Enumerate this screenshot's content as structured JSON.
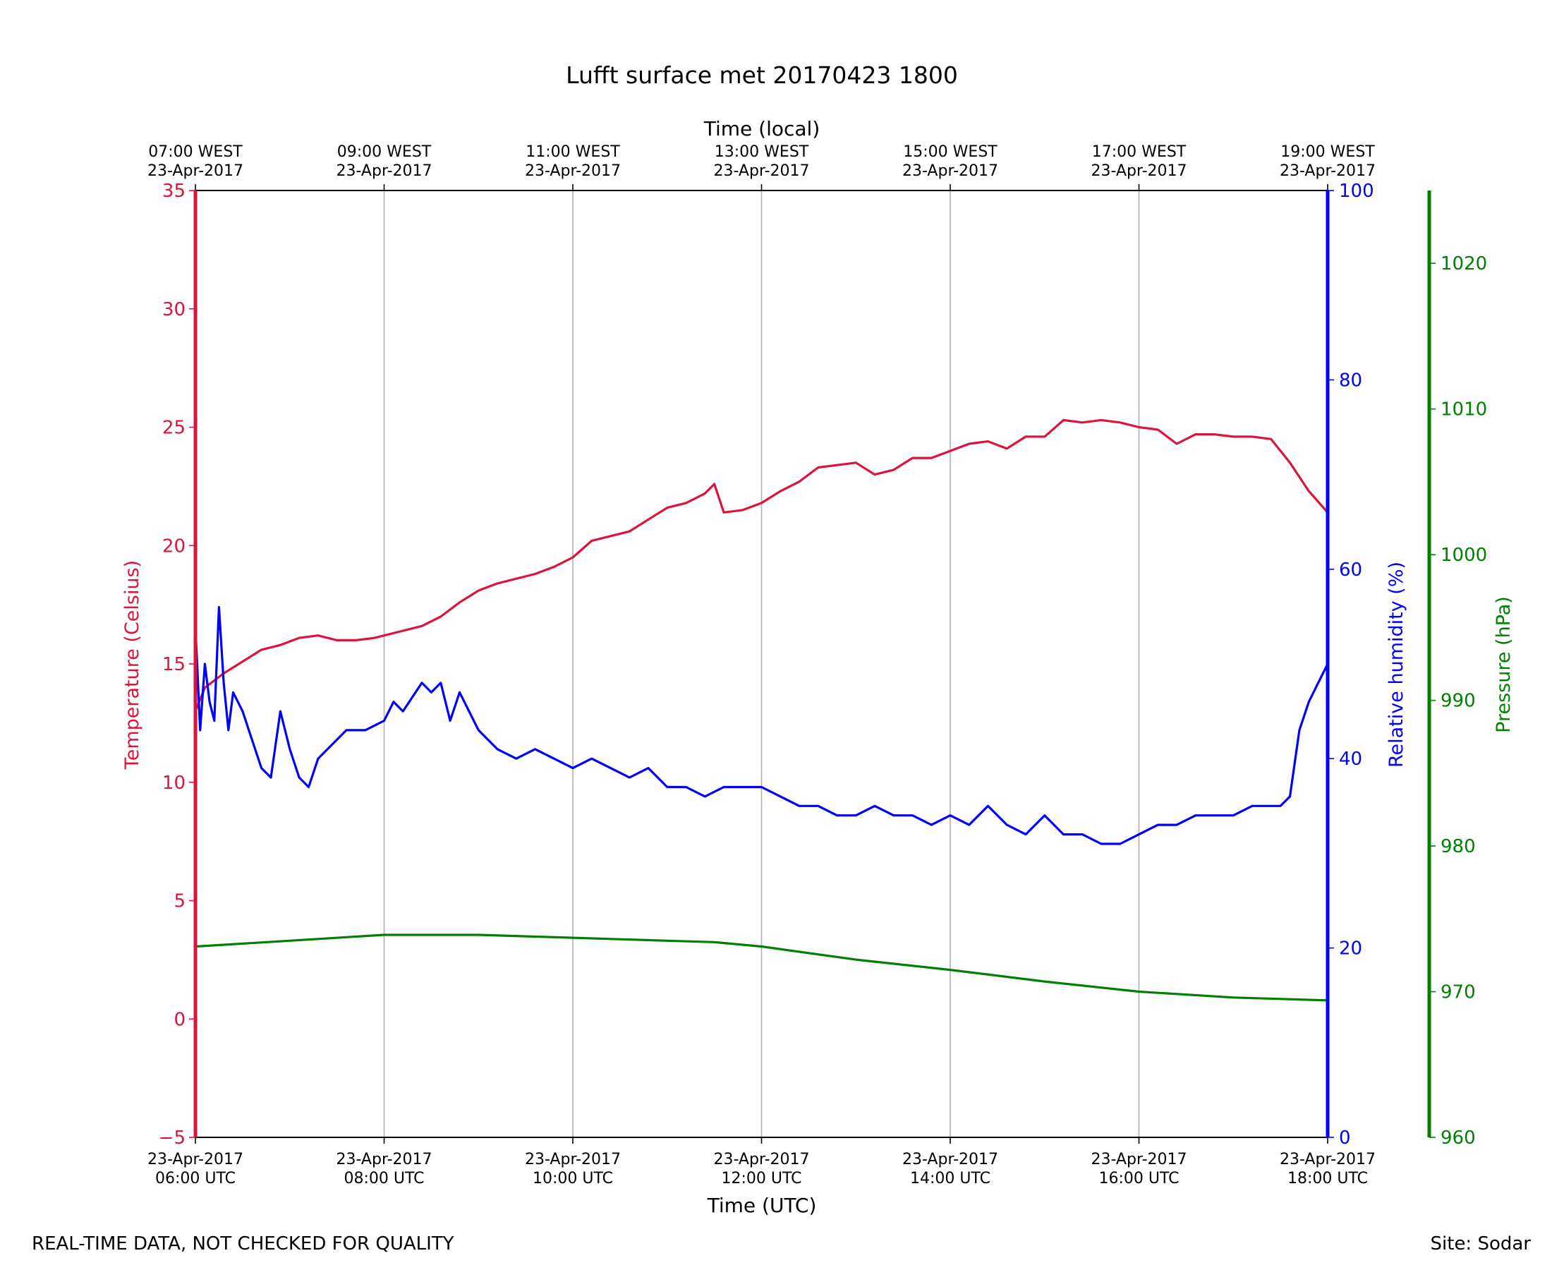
{
  "chart_data": {
    "type": "line",
    "title": "Lufft surface met 20170423 1800",
    "x_top_label": "Time (local)",
    "x_bottom_label": "Time (UTC)",
    "x_hours_utc": [
      6,
      8,
      10,
      12,
      14,
      16,
      18
    ],
    "x_range_hours_utc": [
      6,
      18
    ],
    "ticks_utc": [
      {
        "date": "23-Apr-2017",
        "time": "06:00 UTC"
      },
      {
        "date": "23-Apr-2017",
        "time": "08:00 UTC"
      },
      {
        "date": "23-Apr-2017",
        "time": "10:00 UTC"
      },
      {
        "date": "23-Apr-2017",
        "time": "12:00 UTC"
      },
      {
        "date": "23-Apr-2017",
        "time": "14:00 UTC"
      },
      {
        "date": "23-Apr-2017",
        "time": "16:00 UTC"
      },
      {
        "date": "23-Apr-2017",
        "time": "18:00 UTC"
      }
    ],
    "ticks_local": [
      {
        "time": "07:00 WEST",
        "date": "23-Apr-2017"
      },
      {
        "time": "09:00 WEST",
        "date": "23-Apr-2017"
      },
      {
        "time": "11:00 WEST",
        "date": "23-Apr-2017"
      },
      {
        "time": "13:00 WEST",
        "date": "23-Apr-2017"
      },
      {
        "time": "15:00 WEST",
        "date": "23-Apr-2017"
      },
      {
        "time": "17:00 WEST",
        "date": "23-Apr-2017"
      },
      {
        "time": "19:00 WEST",
        "date": "23-Apr-2017"
      }
    ],
    "grid": "vertical",
    "axes": {
      "temperature": {
        "label": "Temperature (Celsius)",
        "ylim": [
          -5,
          35
        ],
        "ticks": [
          -5,
          0,
          5,
          10,
          15,
          20,
          25,
          30,
          35
        ],
        "tick_labels": [
          "−5",
          "0",
          "5",
          "10",
          "15",
          "20",
          "25",
          "30",
          "35"
        ],
        "color": "#dc143c"
      },
      "humidity": {
        "label": "Relative humidity (%)",
        "ylim": [
          0,
          100
        ],
        "ticks": [
          0,
          20,
          40,
          60,
          80,
          100
        ],
        "tick_labels": [
          "0",
          "20",
          "40",
          "60",
          "80",
          "100"
        ],
        "color": "#0000ff"
      },
      "pressure": {
        "label": "Pressure (hPa)",
        "ylim": [
          960,
          1025
        ],
        "ticks": [
          960,
          970,
          980,
          990,
          1000,
          1010,
          1020
        ],
        "tick_labels": [
          "960",
          "970",
          "980",
          "990",
          "1000",
          "1010",
          "1020"
        ],
        "color": "#008000"
      }
    },
    "series": [
      {
        "name": "Temperature",
        "axis": "temperature",
        "color": "#dc143c",
        "x": [
          6.0,
          6.1,
          6.3,
          6.5,
          6.7,
          6.9,
          7.1,
          7.3,
          7.5,
          7.7,
          7.9,
          8.0,
          8.2,
          8.4,
          8.6,
          8.8,
          9.0,
          9.2,
          9.4,
          9.6,
          9.8,
          10.0,
          10.2,
          10.4,
          10.6,
          10.8,
          11.0,
          11.2,
          11.4,
          11.5,
          11.6,
          11.8,
          12.0,
          12.2,
          12.4,
          12.6,
          12.8,
          13.0,
          13.2,
          13.4,
          13.6,
          13.8,
          14.0,
          14.2,
          14.4,
          14.6,
          14.8,
          15.0,
          15.2,
          15.4,
          15.6,
          15.8,
          16.0,
          16.2,
          16.4,
          16.6,
          16.8,
          17.0,
          17.2,
          17.4,
          17.6,
          17.8,
          18.0
        ],
        "values": [
          13.0,
          14.0,
          14.6,
          15.1,
          15.6,
          15.8,
          16.1,
          16.2,
          16.0,
          16.0,
          16.1,
          16.2,
          16.4,
          16.6,
          17.0,
          17.6,
          18.1,
          18.4,
          18.6,
          18.8,
          19.1,
          19.5,
          20.2,
          20.4,
          20.6,
          21.1,
          21.6,
          21.8,
          22.2,
          22.6,
          21.4,
          21.5,
          21.8,
          22.3,
          22.7,
          23.3,
          23.4,
          23.5,
          23.0,
          23.2,
          23.7,
          23.7,
          24.0,
          24.3,
          24.4,
          24.1,
          24.6,
          24.6,
          25.3,
          25.2,
          25.3,
          25.2,
          25.0,
          24.9,
          24.3,
          24.7,
          24.7,
          24.6,
          24.6,
          24.5,
          23.5,
          22.3,
          21.4
        ]
      },
      {
        "name": "Relative humidity",
        "axis": "humidity",
        "color": "#0000ff",
        "x": [
          6.0,
          6.05,
          6.1,
          6.15,
          6.2,
          6.25,
          6.3,
          6.35,
          6.4,
          6.5,
          6.6,
          6.7,
          6.8,
          6.9,
          7.0,
          7.1,
          7.2,
          7.3,
          7.4,
          7.5,
          7.6,
          7.8,
          8.0,
          8.1,
          8.2,
          8.4,
          8.5,
          8.6,
          8.7,
          8.8,
          8.9,
          9.0,
          9.2,
          9.4,
          9.6,
          9.8,
          10.0,
          10.2,
          10.4,
          10.6,
          10.8,
          11.0,
          11.2,
          11.4,
          11.6,
          11.8,
          12.0,
          12.2,
          12.4,
          12.6,
          12.8,
          13.0,
          13.2,
          13.4,
          13.6,
          13.8,
          14.0,
          14.2,
          14.4,
          14.6,
          14.8,
          15.0,
          15.2,
          15.4,
          15.6,
          15.8,
          16.0,
          16.2,
          16.4,
          16.6,
          16.8,
          17.0,
          17.2,
          17.4,
          17.5,
          17.6,
          17.7,
          17.8,
          17.9,
          18.0
        ],
        "values": [
          54.0,
          43.0,
          50.0,
          46.0,
          44.0,
          56.0,
          48.0,
          43.0,
          47.0,
          45.0,
          42.0,
          39.0,
          38.0,
          45.0,
          41.0,
          38.0,
          37.0,
          40.0,
          41.0,
          42.0,
          43.0,
          43.0,
          44.0,
          46.0,
          45.0,
          48.0,
          47.0,
          48.0,
          44.0,
          47.0,
          45.0,
          43.0,
          41.0,
          40.0,
          41.0,
          40.0,
          39.0,
          40.0,
          39.0,
          38.0,
          39.0,
          37.0,
          37.0,
          36.0,
          37.0,
          37.0,
          37.0,
          36.0,
          35.0,
          35.0,
          34.0,
          34.0,
          35.0,
          34.0,
          34.0,
          33.0,
          34.0,
          33.0,
          35.0,
          33.0,
          32.0,
          34.0,
          32.0,
          32.0,
          31.0,
          31.0,
          32.0,
          33.0,
          33.0,
          34.0,
          34.0,
          34.0,
          35.0,
          35.0,
          35.0,
          36.0,
          43.0,
          46.0,
          48.0,
          50.0
        ]
      },
      {
        "name": "Pressure",
        "axis": "pressure",
        "color": "#008000",
        "x": [
          6.0,
          7.0,
          8.0,
          9.0,
          10.0,
          11.0,
          11.5,
          12.0,
          13.0,
          14.0,
          15.0,
          16.0,
          17.0,
          18.0
        ],
        "values": [
          973.1,
          973.5,
          973.9,
          973.9,
          973.7,
          973.5,
          973.4,
          973.1,
          972.2,
          971.5,
          970.7,
          970.0,
          969.6,
          969.4
        ]
      }
    ]
  },
  "footer": {
    "left": "REAL-TIME DATA, NOT CHECKED FOR QUALITY",
    "right": "Site: Sodar"
  }
}
